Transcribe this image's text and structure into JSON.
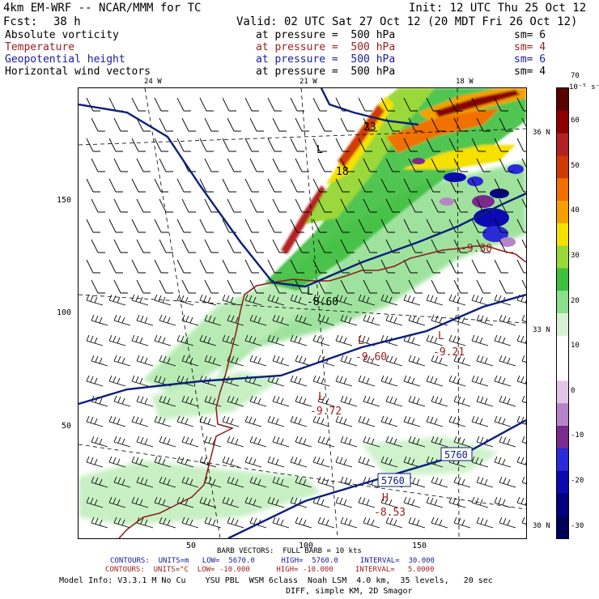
{
  "header": {
    "model": "4km EM-WRF -- NCAR/MMM for TC",
    "init": "Init: 12 UTC Thu 25 Oct 12",
    "fcst_label": "Fcst:",
    "fcst_hours": "38 h",
    "valid": "Valid: 02 UTC Sat 27 Oct 12 (20 MDT Fri 26 Oct 12)"
  },
  "fields": [
    {
      "name": "Absolute vorticity",
      "level": "at pressure =  500 hPa",
      "sm": "sm= 6",
      "color": "#000000"
    },
    {
      "name": "Temperature",
      "level": "at pressure =  500 hPa",
      "sm": "sm= 4",
      "color": "#9b1c1c"
    },
    {
      "name": "Geopotential height",
      "level": "at pressure =  500 hPa",
      "sm": "sm= 6",
      "color": "#1a1aa0"
    },
    {
      "name": "Horizontal wind vectors",
      "level": "at pressure =  500 hPa",
      "sm": "sm= 4",
      "color": "#000000"
    }
  ],
  "map": {
    "lon_labels": [
      "24 W",
      "21 W",
      "18 W"
    ],
    "lat_labels": [
      "36 N",
      "33 N",
      "30 N"
    ],
    "x_ticks": [
      "50",
      "100",
      "150"
    ],
    "y_ticks": [
      "150",
      "100",
      "50"
    ],
    "annotations": {
      "low_labels": [
        "L",
        "L",
        "L",
        "L",
        "L"
      ],
      "high_label": "H",
      "temp_values": [
        "-8.60",
        "-9.60",
        "-9.21",
        "-9.72",
        "-8.53",
        "-9.30"
      ],
      "height_labels": [
        "5760",
        "5760"
      ],
      "vort_labels": [
        "18",
        "23"
      ]
    }
  },
  "colorbar": {
    "unit": "10⁻⁵ s⁻¹",
    "labels": [
      "70",
      "60",
      "50",
      "40",
      "30",
      "20",
      "10",
      "0",
      "-10",
      "-20",
      "-30"
    ],
    "colors": [
      "#5a0000",
      "#8b0000",
      "#b22222",
      "#d03a00",
      "#f07000",
      "#f4a000",
      "#f5e000",
      "#9ad83a",
      "#3fbf3f",
      "#8be08b",
      "#d6f2d2",
      "#ffffff",
      "#ffffff",
      "#e2c4e4",
      "#b784c8",
      "#7a2a8f",
      "#2a2ad8",
      "#0a0ab0",
      "#000080",
      "#00005a"
    ]
  },
  "footer": {
    "barb_vectors": "BARB VECTORS:  FULL BARB = 10 kts",
    "contours1": "CONTOURS:  UNITS=m   LOW=  5670.0      HIGH=  5760.0     INTERVAL=  30.000",
    "contours2": "CONTOURS:  UNITS=°C  LOW= -10.000      HIGH= -10.000     INTERVAL=   5.0000",
    "model_info": "Model Info: V3.3.1 M No Cu    YSU PBL  WSM 6class  Noah LSM  4.0 km,  35 levels,   20 sec",
    "model_info2": "DIFF, simple KM, 2D Smagor"
  }
}
